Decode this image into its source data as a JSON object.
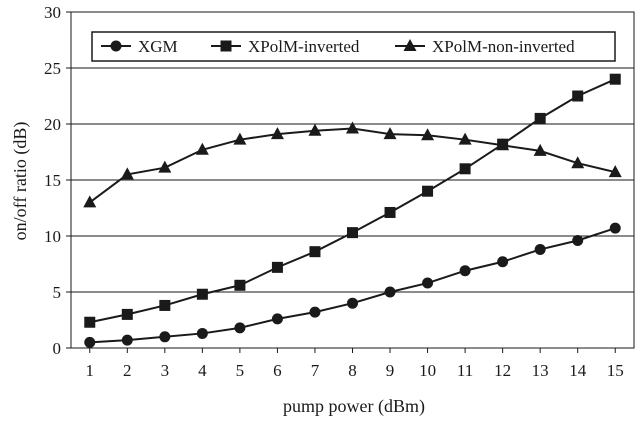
{
  "chart_data": {
    "type": "line",
    "title": "",
    "xlabel": "pump power (dBm)",
    "ylabel": "on/off ratio (dB)",
    "x": [
      1,
      2,
      3,
      4,
      5,
      6,
      7,
      8,
      9,
      10,
      11,
      12,
      13,
      14,
      15
    ],
    "xticks": [
      "1",
      "2",
      "3",
      "4",
      "5",
      "6",
      "7",
      "8",
      "9",
      "10",
      "11",
      "12",
      "13",
      "14",
      "15"
    ],
    "xlim": [
      0.5,
      15.5
    ],
    "ylim": [
      0,
      30
    ],
    "yticks": [
      "0",
      "5",
      "10",
      "15",
      "20",
      "25",
      "30"
    ],
    "grid": "horizontal",
    "legend_position": "top, boxed, single row",
    "series": [
      {
        "name": "XGM",
        "marker": "circle",
        "values": [
          0.5,
          0.7,
          1.0,
          1.3,
          1.8,
          2.6,
          3.2,
          4.0,
          5.0,
          5.8,
          6.9,
          7.7,
          8.8,
          9.6,
          10.7
        ]
      },
      {
        "name": "XPolM-inverted",
        "marker": "square",
        "values": [
          2.3,
          3.0,
          3.8,
          4.8,
          5.6,
          7.2,
          8.6,
          10.3,
          12.1,
          14.0,
          16.0,
          18.2,
          20.5,
          22.5,
          24.0
        ]
      },
      {
        "name": "XPolM-non-inverted",
        "marker": "triangle",
        "values": [
          13.0,
          15.5,
          16.1,
          17.7,
          18.6,
          19.1,
          19.4,
          19.6,
          19.1,
          19.0,
          18.6,
          18.1,
          17.6,
          16.5,
          15.7
        ]
      }
    ],
    "colors": {
      "line": "#1a1a1a",
      "grid": "#1a1a1a",
      "background": "#ffffff"
    }
  }
}
